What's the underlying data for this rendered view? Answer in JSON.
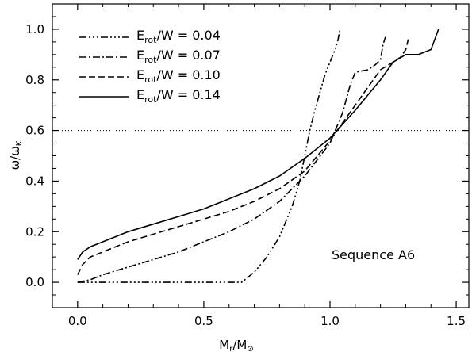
{
  "chart_data": {
    "type": "line",
    "title": "",
    "xlabel": {
      "main": "M",
      "sub1": "r",
      "mid": "/M",
      "sub2": "⊙"
    },
    "ylabel": {
      "main": "ω/ω",
      "sub": "K"
    },
    "xlim": [
      -0.1,
      1.55
    ],
    "ylim": [
      -0.1,
      1.1
    ],
    "xticks": [
      "0.0",
      "0.5",
      "1.0",
      "1.5"
    ],
    "xtick_values": [
      0.0,
      0.5,
      1.0,
      1.5
    ],
    "yticks": [
      "0.0",
      "0.2",
      "0.4",
      "0.6",
      "0.8",
      "1.0"
    ],
    "ytick_values": [
      0.0,
      0.2,
      0.4,
      0.6,
      0.8,
      1.0
    ],
    "grid": false,
    "legend_position": "top-left",
    "reference_line": {
      "y": 0.6,
      "style": "dotted"
    },
    "annotation": "Sequence A6",
    "series": [
      {
        "legend_main": "E",
        "legend_sub": "rot",
        "legend_rest": "/W  =  0.04",
        "dash": "dash-dot-dot-dot",
        "x": [
          0.0,
          0.1,
          0.2,
          0.3,
          0.4,
          0.5,
          0.6,
          0.65,
          0.7,
          0.75,
          0.8,
          0.85,
          0.88,
          0.9,
          0.92,
          0.94,
          0.96,
          0.98,
          1.0,
          1.02,
          1.03,
          1.04
        ],
        "y": [
          0.0,
          0.0,
          0.0,
          0.0,
          0.0,
          0.0,
          0.0,
          0.0,
          0.04,
          0.1,
          0.18,
          0.3,
          0.4,
          0.5,
          0.6,
          0.68,
          0.75,
          0.82,
          0.87,
          0.92,
          0.95,
          1.0
        ]
      },
      {
        "legend_main": "E",
        "legend_sub": "rot",
        "legend_rest": "/W  =  0.07",
        "dash": "dash-dot",
        "x": [
          0.0,
          0.05,
          0.1,
          0.2,
          0.3,
          0.4,
          0.5,
          0.6,
          0.7,
          0.8,
          0.9,
          1.0,
          1.05,
          1.08,
          1.1,
          1.15,
          1.18,
          1.2,
          1.21,
          1.22
        ],
        "y": [
          0.0,
          0.01,
          0.03,
          0.06,
          0.09,
          0.12,
          0.16,
          0.2,
          0.25,
          0.32,
          0.42,
          0.55,
          0.67,
          0.78,
          0.83,
          0.84,
          0.86,
          0.88,
          0.94,
          0.97
        ]
      },
      {
        "legend_main": "E",
        "legend_sub": "rot",
        "legend_rest": "/W  =  0.10",
        "dash": "dashed",
        "x": [
          0.0,
          0.02,
          0.05,
          0.1,
          0.2,
          0.3,
          0.4,
          0.5,
          0.6,
          0.7,
          0.8,
          0.9,
          1.0,
          1.05,
          1.1,
          1.15,
          1.2,
          1.25,
          1.28,
          1.3,
          1.31
        ],
        "y": [
          0.03,
          0.07,
          0.1,
          0.12,
          0.16,
          0.19,
          0.22,
          0.25,
          0.28,
          0.32,
          0.37,
          0.44,
          0.56,
          0.63,
          0.7,
          0.77,
          0.84,
          0.87,
          0.89,
          0.92,
          0.96
        ]
      },
      {
        "legend_main": "E",
        "legend_sub": "rot",
        "legend_rest": "/W  =  0.14",
        "dash": "solid",
        "x": [
          0.0,
          0.02,
          0.05,
          0.1,
          0.2,
          0.3,
          0.4,
          0.5,
          0.6,
          0.7,
          0.8,
          0.9,
          1.0,
          1.1,
          1.2,
          1.25,
          1.3,
          1.35,
          1.4,
          1.43
        ],
        "y": [
          0.09,
          0.12,
          0.14,
          0.16,
          0.2,
          0.23,
          0.26,
          0.29,
          0.33,
          0.37,
          0.42,
          0.49,
          0.57,
          0.68,
          0.8,
          0.87,
          0.9,
          0.9,
          0.92,
          1.0
        ]
      }
    ]
  }
}
